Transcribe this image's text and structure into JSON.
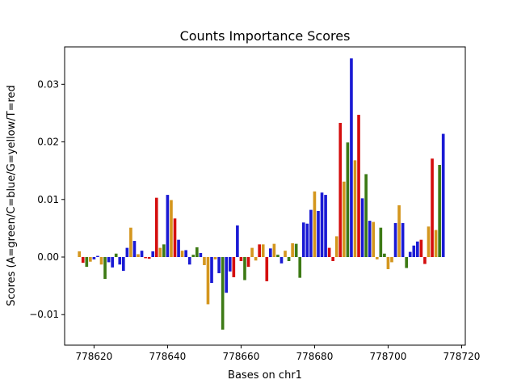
{
  "chart_data": {
    "type": "bar",
    "title": "Counts Importance Scores",
    "xlabel": "Bases on chr1",
    "ylabel": "Scores (A=green/C=blue/G=yellow/T=red",
    "xlim": [
      778612,
      778721
    ],
    "ylim": [
      -0.0153,
      0.0365
    ],
    "x_ticks": [
      778620,
      778640,
      778660,
      778680,
      778700,
      778720
    ],
    "x_tick_labels": [
      "778620",
      "778640",
      "778660",
      "778680",
      "778700",
      "778720"
    ],
    "y_ticks": [
      -0.01,
      0.0,
      0.01,
      0.02,
      0.03
    ],
    "y_tick_labels": [
      "−0.01",
      "0.00",
      "0.01",
      "0.02",
      "0.03"
    ],
    "grid": false,
    "colors": {
      "A": "#3d7a15",
      "C": "#1a1ad4",
      "G": "#d4961e",
      "T": "#d40e0e"
    },
    "bases": [
      {
        "x": 778616,
        "base": "G",
        "value": 0.001
      },
      {
        "x": 778617,
        "base": "T",
        "value": -0.001
      },
      {
        "x": 778618,
        "base": "A",
        "value": -0.0017
      },
      {
        "x": 778619,
        "base": "G",
        "value": -0.0008
      },
      {
        "x": 778620,
        "base": "C",
        "value": -0.0004
      },
      {
        "x": 778621,
        "base": "C",
        "value": 0.0002
      },
      {
        "x": 778622,
        "base": "G",
        "value": -0.0013
      },
      {
        "x": 778623,
        "base": "A",
        "value": -0.0038
      },
      {
        "x": 778624,
        "base": "C",
        "value": -0.0009
      },
      {
        "x": 778625,
        "base": "C",
        "value": -0.0018
      },
      {
        "x": 778626,
        "base": "A",
        "value": 0.0006
      },
      {
        "x": 778627,
        "base": "C",
        "value": -0.0013
      },
      {
        "x": 778628,
        "base": "C",
        "value": -0.0024
      },
      {
        "x": 778629,
        "base": "C",
        "value": 0.0016
      },
      {
        "x": 778630,
        "base": "G",
        "value": 0.0051
      },
      {
        "x": 778631,
        "base": "C",
        "value": 0.0028
      },
      {
        "x": 778632,
        "base": "G",
        "value": 0.0005
      },
      {
        "x": 778633,
        "base": "C",
        "value": 0.0011
      },
      {
        "x": 778634,
        "base": "T",
        "value": -0.0002
      },
      {
        "x": 778635,
        "base": "T",
        "value": -0.0003
      },
      {
        "x": 778636,
        "base": "C",
        "value": 0.001
      },
      {
        "x": 778637,
        "base": "T",
        "value": 0.0103
      },
      {
        "x": 778638,
        "base": "G",
        "value": 0.0016
      },
      {
        "x": 778639,
        "base": "A",
        "value": 0.0022
      },
      {
        "x": 778640,
        "base": "C",
        "value": 0.0108
      },
      {
        "x": 778641,
        "base": "G",
        "value": 0.0099
      },
      {
        "x": 778642,
        "base": "T",
        "value": 0.0067
      },
      {
        "x": 778643,
        "base": "C",
        "value": 0.003
      },
      {
        "x": 778644,
        "base": "G",
        "value": 0.0011
      },
      {
        "x": 778645,
        "base": "C",
        "value": 0.0012
      },
      {
        "x": 778646,
        "base": "C",
        "value": -0.0013
      },
      {
        "x": 778647,
        "base": "A",
        "value": 0.0004
      },
      {
        "x": 778648,
        "base": "A",
        "value": 0.0017
      },
      {
        "x": 778649,
        "base": "C",
        "value": 0.0007
      },
      {
        "x": 778650,
        "base": "G",
        "value": -0.0014
      },
      {
        "x": 778651,
        "base": "G",
        "value": -0.0082
      },
      {
        "x": 778652,
        "base": "C",
        "value": -0.0045
      },
      {
        "x": 778653,
        "base": "G",
        "value": -0.0004
      },
      {
        "x": 778654,
        "base": "C",
        "value": -0.0028
      },
      {
        "x": 778655,
        "base": "A",
        "value": -0.0126
      },
      {
        "x": 778656,
        "base": "C",
        "value": -0.0062
      },
      {
        "x": 778657,
        "base": "C",
        "value": -0.0025
      },
      {
        "x": 778658,
        "base": "T",
        "value": -0.0035
      },
      {
        "x": 778659,
        "base": "C",
        "value": 0.0055
      },
      {
        "x": 778660,
        "base": "T",
        "value": -0.0007
      },
      {
        "x": 778661,
        "base": "A",
        "value": -0.004
      },
      {
        "x": 778662,
        "base": "T",
        "value": -0.0017
      },
      {
        "x": 778663,
        "base": "G",
        "value": 0.0016
      },
      {
        "x": 778664,
        "base": "G",
        "value": -0.0006
      },
      {
        "x": 778665,
        "base": "T",
        "value": 0.0022
      },
      {
        "x": 778666,
        "base": "G",
        "value": 0.0022
      },
      {
        "x": 778667,
        "base": "T",
        "value": -0.0042
      },
      {
        "x": 778668,
        "base": "C",
        "value": 0.0015
      },
      {
        "x": 778669,
        "base": "G",
        "value": 0.0023
      },
      {
        "x": 778670,
        "base": "A",
        "value": 0.0004
      },
      {
        "x": 778671,
        "base": "C",
        "value": -0.0011
      },
      {
        "x": 778672,
        "base": "G",
        "value": 0.0011
      },
      {
        "x": 778673,
        "base": "A",
        "value": -0.0007
      },
      {
        "x": 778674,
        "base": "G",
        "value": 0.0024
      },
      {
        "x": 778675,
        "base": "A",
        "value": 0.0023
      },
      {
        "x": 778676,
        "base": "A",
        "value": -0.0036
      },
      {
        "x": 778677,
        "base": "C",
        "value": 0.006
      },
      {
        "x": 778678,
        "base": "C",
        "value": 0.0058
      },
      {
        "x": 778679,
        "base": "C",
        "value": 0.0082
      },
      {
        "x": 778680,
        "base": "G",
        "value": 0.0114
      },
      {
        "x": 778681,
        "base": "C",
        "value": 0.008
      },
      {
        "x": 778682,
        "base": "C",
        "value": 0.0112
      },
      {
        "x": 778683,
        "base": "C",
        "value": 0.0108
      },
      {
        "x": 778684,
        "base": "T",
        "value": 0.0016
      },
      {
        "x": 778685,
        "base": "T",
        "value": -0.0007
      },
      {
        "x": 778686,
        "base": "G",
        "value": 0.0036
      },
      {
        "x": 778687,
        "base": "T",
        "value": 0.0233
      },
      {
        "x": 778688,
        "base": "G",
        "value": 0.0131
      },
      {
        "x": 778689,
        "base": "A",
        "value": 0.0199
      },
      {
        "x": 778690,
        "base": "C",
        "value": 0.0345
      },
      {
        "x": 778691,
        "base": "G",
        "value": 0.0168
      },
      {
        "x": 778692,
        "base": "T",
        "value": 0.0247
      },
      {
        "x": 778693,
        "base": "C",
        "value": 0.0102
      },
      {
        "x": 778694,
        "base": "A",
        "value": 0.0144
      },
      {
        "x": 778695,
        "base": "C",
        "value": 0.0063
      },
      {
        "x": 778696,
        "base": "G",
        "value": 0.0061
      },
      {
        "x": 778697,
        "base": "G",
        "value": -0.0004
      },
      {
        "x": 778698,
        "base": "A",
        "value": 0.0051
      },
      {
        "x": 778699,
        "base": "A",
        "value": 0.0006
      },
      {
        "x": 778700,
        "base": "G",
        "value": -0.0021
      },
      {
        "x": 778701,
        "base": "G",
        "value": -0.0009
      },
      {
        "x": 778702,
        "base": "C",
        "value": 0.0059
      },
      {
        "x": 778703,
        "base": "G",
        "value": 0.009
      },
      {
        "x": 778704,
        "base": "C",
        "value": 0.0059
      },
      {
        "x": 778705,
        "base": "A",
        "value": -0.0019
      },
      {
        "x": 778706,
        "base": "C",
        "value": 0.0009
      },
      {
        "x": 778707,
        "base": "C",
        "value": 0.002
      },
      {
        "x": 778708,
        "base": "C",
        "value": 0.0027
      },
      {
        "x": 778709,
        "base": "T",
        "value": 0.003
      },
      {
        "x": 778710,
        "base": "T",
        "value": -0.0012
      },
      {
        "x": 778711,
        "base": "G",
        "value": 0.0053
      },
      {
        "x": 778712,
        "base": "T",
        "value": 0.0171
      },
      {
        "x": 778713,
        "base": "G",
        "value": 0.0047
      },
      {
        "x": 778714,
        "base": "A",
        "value": 0.016
      },
      {
        "x": 778715,
        "base": "C",
        "value": 0.0214
      }
    ]
  }
}
